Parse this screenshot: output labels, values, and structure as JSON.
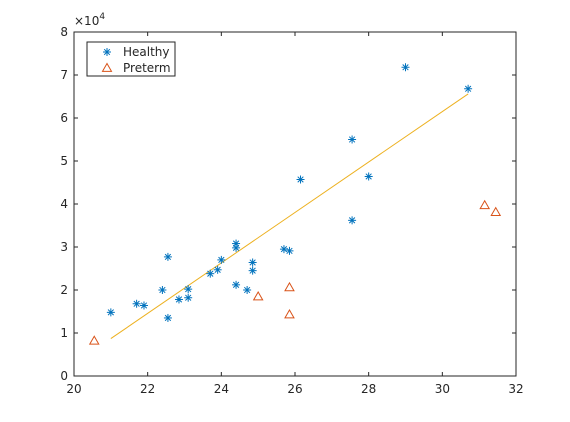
{
  "chart_data": {
    "type": "scatter",
    "title": "",
    "xlabel": "",
    "ylabel": "",
    "xlim": [
      20,
      32
    ],
    "ylim": [
      0,
      80000
    ],
    "x_ticks": [
      "20",
      "22",
      "24",
      "26",
      "28",
      "30",
      "32"
    ],
    "y_ticks": [
      "0",
      "1",
      "2",
      "3",
      "4",
      "5",
      "6",
      "7",
      "8"
    ],
    "y_exponent": {
      "base": "×10",
      "power": "4"
    },
    "grid": false,
    "legend_position": "top-left",
    "series": [
      {
        "name": "Healthy",
        "marker": "asterisk",
        "color": "#0072BD",
        "points": [
          [
            21.0,
            14800
          ],
          [
            21.7,
            16800
          ],
          [
            21.9,
            16400
          ],
          [
            22.4,
            20000
          ],
          [
            22.55,
            27700
          ],
          [
            22.55,
            13500
          ],
          [
            22.85,
            17800
          ],
          [
            23.1,
            18200
          ],
          [
            23.1,
            20200
          ],
          [
            23.7,
            23800
          ],
          [
            23.9,
            24700
          ],
          [
            24.0,
            27000
          ],
          [
            24.4,
            30800
          ],
          [
            24.4,
            29800
          ],
          [
            24.4,
            21200
          ],
          [
            24.7,
            20000
          ],
          [
            24.85,
            26400
          ],
          [
            24.85,
            24500
          ],
          [
            25.7,
            29500
          ],
          [
            25.85,
            29100
          ],
          [
            26.15,
            45700
          ],
          [
            27.55,
            55000
          ],
          [
            27.55,
            36200
          ],
          [
            28.0,
            46400
          ],
          [
            29.0,
            71800
          ],
          [
            30.7,
            66800
          ]
        ]
      },
      {
        "name": "Preterm",
        "marker": "triangle",
        "color": "#D95319",
        "points": [
          [
            20.55,
            8200
          ],
          [
            25.0,
            18500
          ],
          [
            25.85,
            20600
          ],
          [
            25.85,
            14300
          ],
          [
            31.15,
            39700
          ],
          [
            31.45,
            38100
          ]
        ]
      }
    ],
    "fit_line": {
      "color": "#EDB120",
      "from": [
        21.0,
        8700
      ],
      "to": [
        30.7,
        65600
      ]
    }
  }
}
